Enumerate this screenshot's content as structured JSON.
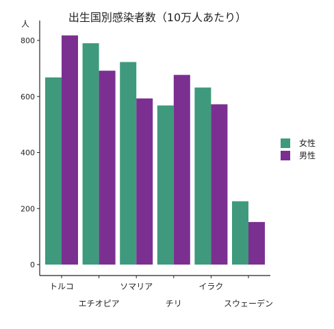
{
  "chart_data": {
    "type": "bar",
    "title": "出生国別感染者数（10万人あたり）",
    "ylabel": "人",
    "xlabel": "",
    "categories": [
      "トルコ",
      "エチオピア",
      "ソマリア",
      "チリ",
      "イラク",
      "スウェーデン"
    ],
    "series": [
      {
        "name": "女性",
        "color": "#3f9a7d",
        "values": [
          668,
          790,
          723,
          568,
          632,
          226
        ]
      },
      {
        "name": "男性",
        "color": "#7b3091",
        "values": [
          818,
          692,
          593,
          677,
          572,
          152
        ]
      }
    ],
    "ylim": [
      0,
      850
    ],
    "yticks": [
      0,
      200,
      400,
      600,
      800
    ],
    "legend": "right",
    "grid": false
  }
}
